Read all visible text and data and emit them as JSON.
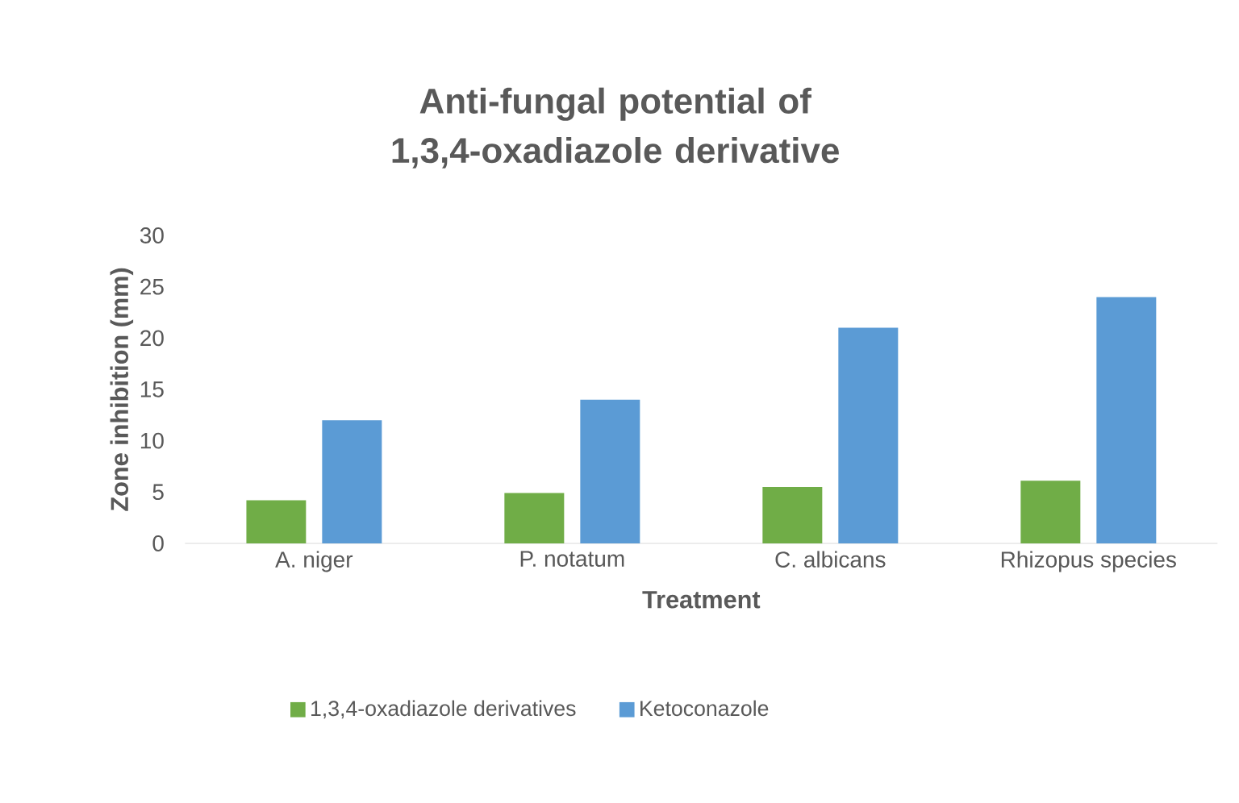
{
  "chart_data": {
    "type": "bar",
    "title": "Anti-fungal potential of 1,3,4-oxadiazole derivative",
    "xlabel": "Treatment",
    "ylabel": "Zone inhibition (mm)",
    "categories": [
      "A. niger",
      "P. notatum",
      "C. albicans",
      "Rhizopus species"
    ],
    "series": [
      {
        "name": "1,3,4-oxadiazole derivatives",
        "color": "#70ad47",
        "values": [
          4.2,
          4.9,
          5.5,
          6.1
        ]
      },
      {
        "name": "Ketoconazole",
        "color": "#5b9bd5",
        "values": [
          12,
          14,
          21,
          24
        ]
      }
    ],
    "ylim": [
      0,
      30
    ],
    "yticks": [
      0,
      5,
      10,
      15,
      20,
      25,
      30
    ],
    "grid": false,
    "legend": "bottom"
  }
}
